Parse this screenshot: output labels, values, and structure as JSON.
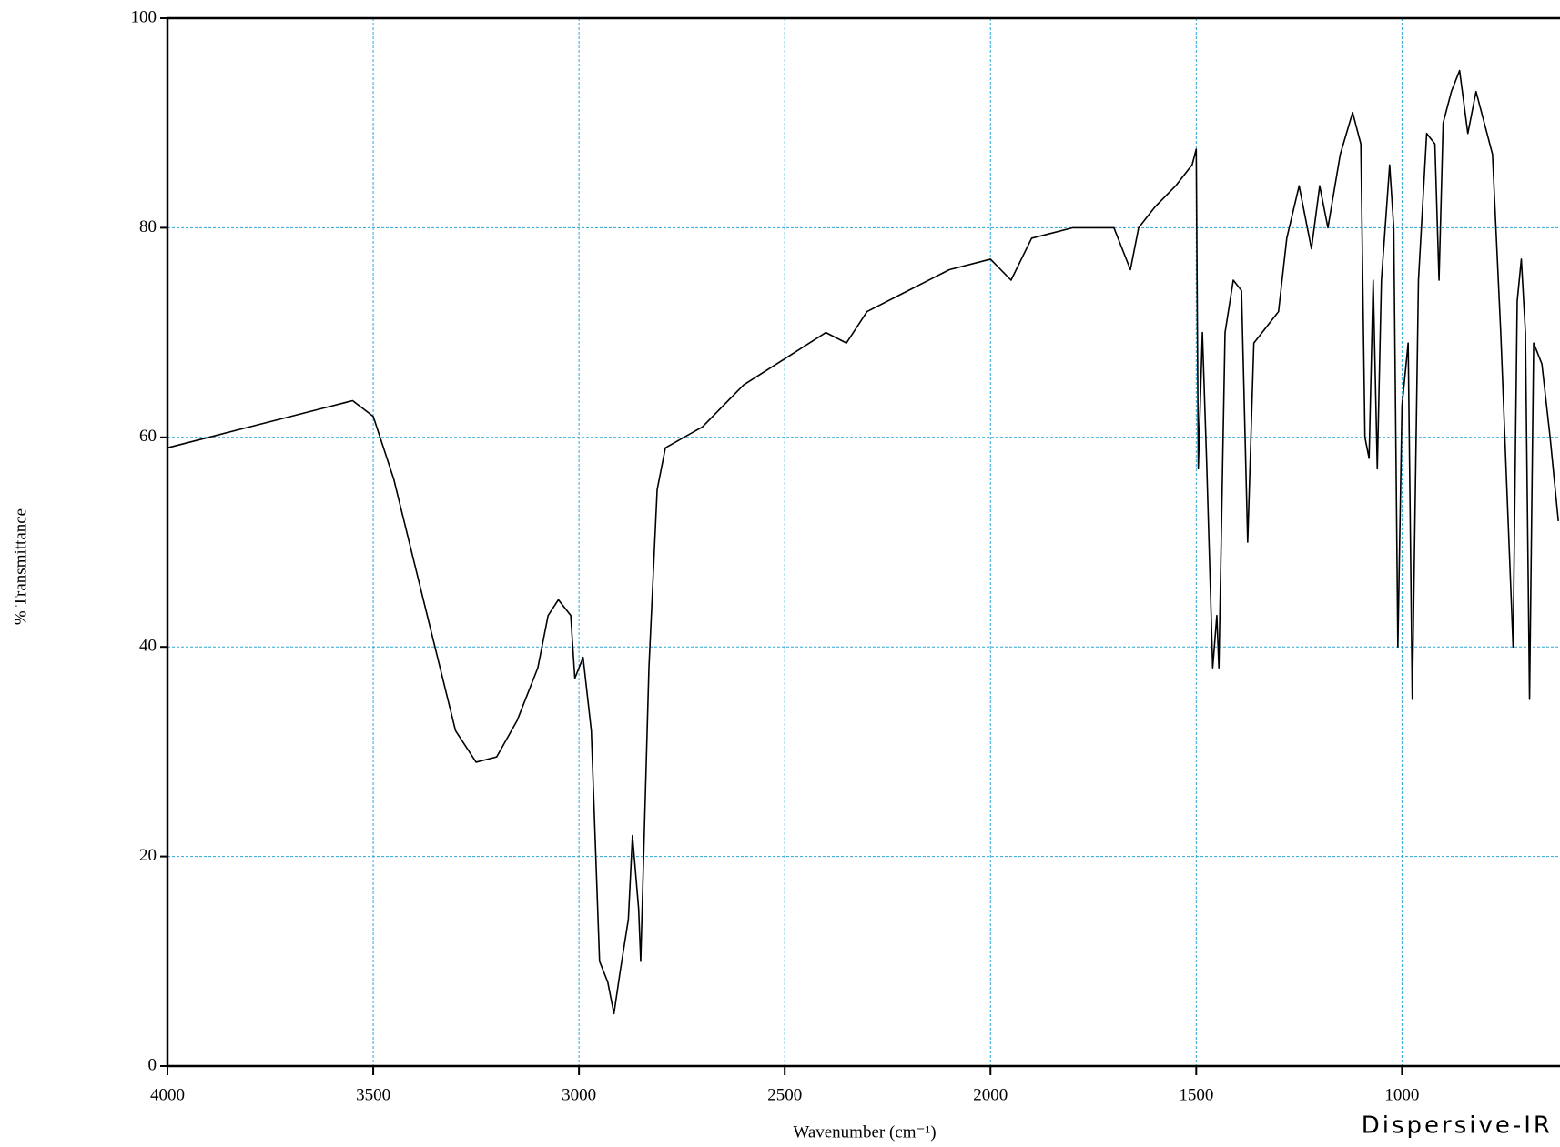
{
  "chart_data": {
    "type": "line",
    "x_label": "Wavenumber (cm⁻¹)",
    "y_label": "% Transmittance",
    "annotation": "Dispersive-IR",
    "color": "#000000",
    "grid": true,
    "grid_color": "#2aa8d8",
    "xlim": [
      4000,
      616
    ],
    "ylim": [
      0,
      100
    ],
    "xticks": [
      4000,
      3500,
      3000,
      2500,
      2000,
      1500,
      1000
    ],
    "yticks": [
      0,
      20,
      40,
      60,
      80,
      100
    ],
    "x": [
      4000,
      3900,
      3800,
      3700,
      3600,
      3550,
      3500,
      3450,
      3400,
      3350,
      3300,
      3250,
      3200,
      3150,
      3100,
      3075,
      3050,
      3020,
      3010,
      2990,
      2970,
      2950,
      2930,
      2915,
      2900,
      2880,
      2870,
      2855,
      2850,
      2830,
      2810,
      2790,
      2700,
      2600,
      2500,
      2400,
      2350,
      2300,
      2200,
      2100,
      2000,
      1950,
      1900,
      1800,
      1700,
      1660,
      1640,
      1600,
      1550,
      1510,
      1500,
      1495,
      1485,
      1475,
      1460,
      1450,
      1445,
      1430,
      1410,
      1390,
      1375,
      1360,
      1300,
      1280,
      1250,
      1220,
      1200,
      1180,
      1150,
      1120,
      1100,
      1090,
      1080,
      1070,
      1060,
      1050,
      1030,
      1020,
      1010,
      1000,
      985,
      975,
      960,
      940,
      920,
      910,
      900,
      880,
      860,
      840,
      820,
      800,
      780,
      760,
      740,
      730,
      720,
      710,
      700,
      690,
      680,
      660,
      640,
      620
    ],
    "values": [
      59,
      60,
      61,
      62,
      63,
      63.5,
      62,
      56,
      48,
      40,
      32,
      29,
      29.5,
      33,
      38,
      43,
      44.5,
      43,
      37,
      39,
      32,
      10,
      8,
      5,
      9,
      14,
      22,
      15,
      10,
      38,
      55,
      59,
      61,
      65,
      67.5,
      70,
      69,
      72,
      74,
      76,
      77,
      75,
      79,
      80,
      80,
      76,
      80,
      82,
      84,
      86,
      87.5,
      57,
      70,
      58,
      38,
      43,
      38,
      70,
      75,
      74,
      50,
      69,
      72,
      79,
      84,
      78,
      84,
      80,
      87,
      91,
      88,
      60,
      58,
      75,
      57,
      75,
      86,
      80,
      40,
      63,
      69,
      35,
      75,
      89,
      88,
      75,
      90,
      93,
      95,
      89,
      93,
      90,
      87,
      70,
      50,
      40,
      73,
      77,
      70,
      35,
      69,
      67,
      60,
      52
    ]
  }
}
